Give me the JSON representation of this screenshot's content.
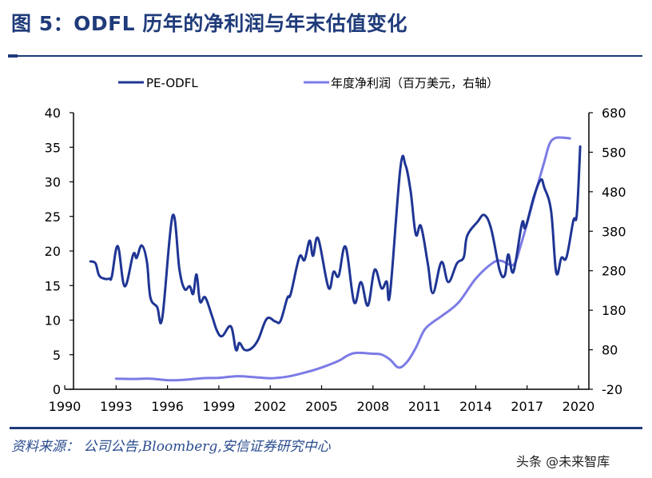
{
  "header": {
    "title": "图 5：ODFL 历年的净利润与年末估值变化"
  },
  "footer": {
    "source": "资料来源： 公司公告,Bloomberg,安信证券研究中心",
    "watermark": "头条 @未来智库"
  },
  "colors": {
    "title": "#1f3b7a",
    "pe_line": "#1f3594",
    "profit_line": "#7b7be6",
    "axis": "#000000"
  },
  "chart_data": {
    "type": "line",
    "title": "ODFL 历年的净利润与年末估值变化",
    "xlabel": "",
    "ylabel": "",
    "y2label": "",
    "xlim": [
      1990,
      2020.9
    ],
    "ylim": [
      0,
      40
    ],
    "y2lim": [
      -20,
      680
    ],
    "x_ticks": [
      "1990",
      "1993",
      "1996",
      "1999",
      "2002",
      "2005",
      "2008",
      "2011",
      "2014",
      "2017",
      "2020"
    ],
    "y_ticks": [
      "0",
      "5",
      "10",
      "15",
      "20",
      "25",
      "30",
      "35",
      "40"
    ],
    "y2_ticks": [
      "-20",
      "80",
      "180",
      "280",
      "380",
      "480",
      "580",
      "680"
    ],
    "legend_position": "top",
    "grid": false,
    "series": [
      {
        "name": "PE-ODFL",
        "axis": "left",
        "x": [
          1991.5,
          1991.8,
          1992.0,
          1992.3,
          1992.6,
          1992.75,
          1993.1,
          1993.5,
          1994.0,
          1994.2,
          1994.5,
          1994.8,
          1995.0,
          1995.4,
          1995.7,
          1996.3,
          1996.7,
          1997.0,
          1997.3,
          1997.5,
          1997.7,
          1997.9,
          1998.2,
          1998.6,
          1998.9,
          1999.2,
          1999.7,
          2000.0,
          2000.2,
          2000.5,
          2000.9,
          2001.3,
          2001.8,
          2002.3,
          2002.6,
          2003.0,
          2003.2,
          2003.7,
          2004.0,
          2004.3,
          2004.5,
          2004.8,
          2005.4,
          2005.7,
          2006.0,
          2006.4,
          2006.9,
          2007.3,
          2007.7,
          2008.1,
          2008.5,
          2008.8,
          2009.0,
          2009.6,
          2009.9,
          2010.2,
          2010.5,
          2010.8,
          2011.2,
          2011.5,
          2012.0,
          2012.4,
          2012.9,
          2013.3,
          2013.5,
          2014.1,
          2014.5,
          2014.9,
          2015.4,
          2015.7,
          2015.9,
          2016.2,
          2016.7,
          2016.9,
          2017.4,
          2017.8,
          2018.0,
          2018.4,
          2018.7,
          2019.0,
          2019.3,
          2019.7,
          2019.9,
          2020.1
        ],
        "values": [
          18.5,
          18.2,
          16.5,
          16.0,
          16.0,
          16.3,
          20.7,
          14.9,
          19.5,
          19.0,
          20.8,
          18.4,
          13.3,
          11.9,
          10.4,
          25.1,
          17.3,
          14.5,
          14.9,
          13.8,
          16.6,
          12.7,
          13.3,
          10.6,
          8.4,
          7.7,
          9.1,
          5.7,
          6.7,
          5.7,
          5.9,
          7.2,
          10.2,
          9.8,
          9.9,
          13.2,
          13.8,
          19.1,
          18.7,
          21.5,
          19.3,
          21.8,
          14.7,
          17.0,
          16.4,
          20.6,
          12.6,
          15.5,
          12.1,
          17.3,
          14.6,
          15.6,
          13.9,
          32.0,
          32.4,
          28.6,
          22.4,
          23.6,
          18.2,
          13.9,
          18.4,
          15.5,
          18.2,
          19.1,
          22.2,
          24.2,
          25.2,
          23.2,
          17.2,
          16.5,
          19.5,
          17.0,
          24.0,
          23.4,
          27.9,
          30.3,
          29.2,
          25.8,
          16.9,
          19.0,
          19.1,
          24.4,
          25.3,
          35.1
        ]
      },
      {
        "name": "年度净利润（百万美元，右轴）",
        "axis": "right",
        "x": [
          1993.0,
          1994.0,
          1995.0,
          1996.0,
          1997.0,
          1998.0,
          1999.0,
          2000.0,
          2001.0,
          2002.0,
          2003.0,
          2004.0,
          2005.0,
          2006.0,
          2006.5,
          2007.0,
          2008.0,
          2008.5,
          2009.0,
          2009.5,
          2010.0,
          2010.5,
          2011.0,
          2011.5,
          2012.0,
          2013.0,
          2014.0,
          2015.0,
          2015.5,
          2016.0,
          2016.3,
          2016.6,
          2017.0,
          2017.5,
          2018.0,
          2018.3,
          2018.6,
          2019.0,
          2019.5
        ],
        "values": [
          7,
          6,
          7,
          3,
          4,
          8,
          9,
          13,
          11,
          8,
          12,
          22,
          35,
          52,
          65,
          72,
          70,
          68,
          55,
          35,
          50,
          85,
          130,
          150,
          165,
          200,
          260,
          300,
          305,
          295,
          300,
          340,
          400,
          480,
          555,
          600,
          615,
          617,
          615
        ]
      }
    ]
  }
}
